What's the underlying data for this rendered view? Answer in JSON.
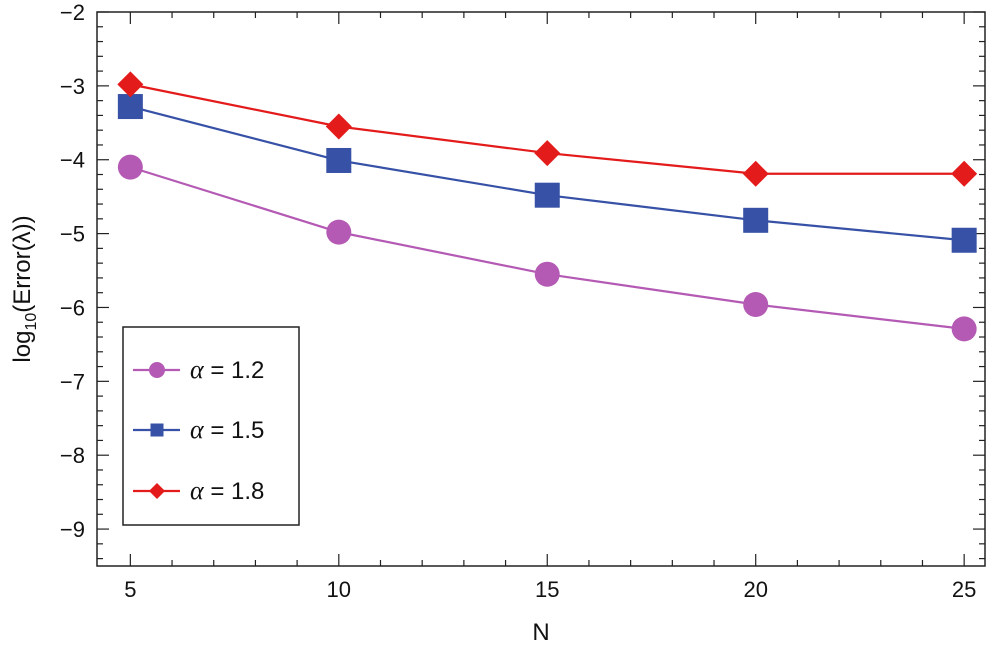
{
  "chart_data": {
    "type": "line",
    "title": "",
    "xlabel": "N",
    "ylabel": {
      "base": "log",
      "subscript": "10",
      "rest": "(Error(λ))"
    },
    "xlim": [
      4.2,
      25.5
    ],
    "ylim": [
      -9.5,
      -2
    ],
    "xticks": [
      5,
      10,
      15,
      20,
      25
    ],
    "xtick_labels": [
      "5",
      "10",
      "15",
      "20",
      "25"
    ],
    "yticks": [
      -2,
      -3,
      -4,
      -5,
      -6,
      -7,
      -8,
      -9
    ],
    "ytick_labels": [
      "−2",
      "−3",
      "−4",
      "−5",
      "−6",
      "−7",
      "−8",
      "−9"
    ],
    "x": [
      5,
      10,
      15,
      20,
      25
    ],
    "grid": false,
    "legend_position": "bottom-left",
    "series": [
      {
        "name": "α = 1.2",
        "symbol": "α",
        "label_rest": " = 1.2",
        "marker": "circle",
        "color": "#b45ab4",
        "values": [
          -4.1,
          -4.98,
          -5.55,
          -5.96,
          -6.29
        ]
      },
      {
        "name": "α = 1.5",
        "symbol": "α",
        "label_rest": " = 1.5",
        "marker": "square",
        "color": "#3651a6",
        "values": [
          -3.28,
          -4.01,
          -4.48,
          -4.82,
          -5.09
        ]
      },
      {
        "name": "α = 1.8",
        "symbol": "α",
        "label_rest": " = 1.8",
        "marker": "diamond",
        "color": "#e41b1b",
        "values": [
          -2.98,
          -3.55,
          -3.91,
          -4.19,
          -4.19
        ]
      }
    ]
  }
}
